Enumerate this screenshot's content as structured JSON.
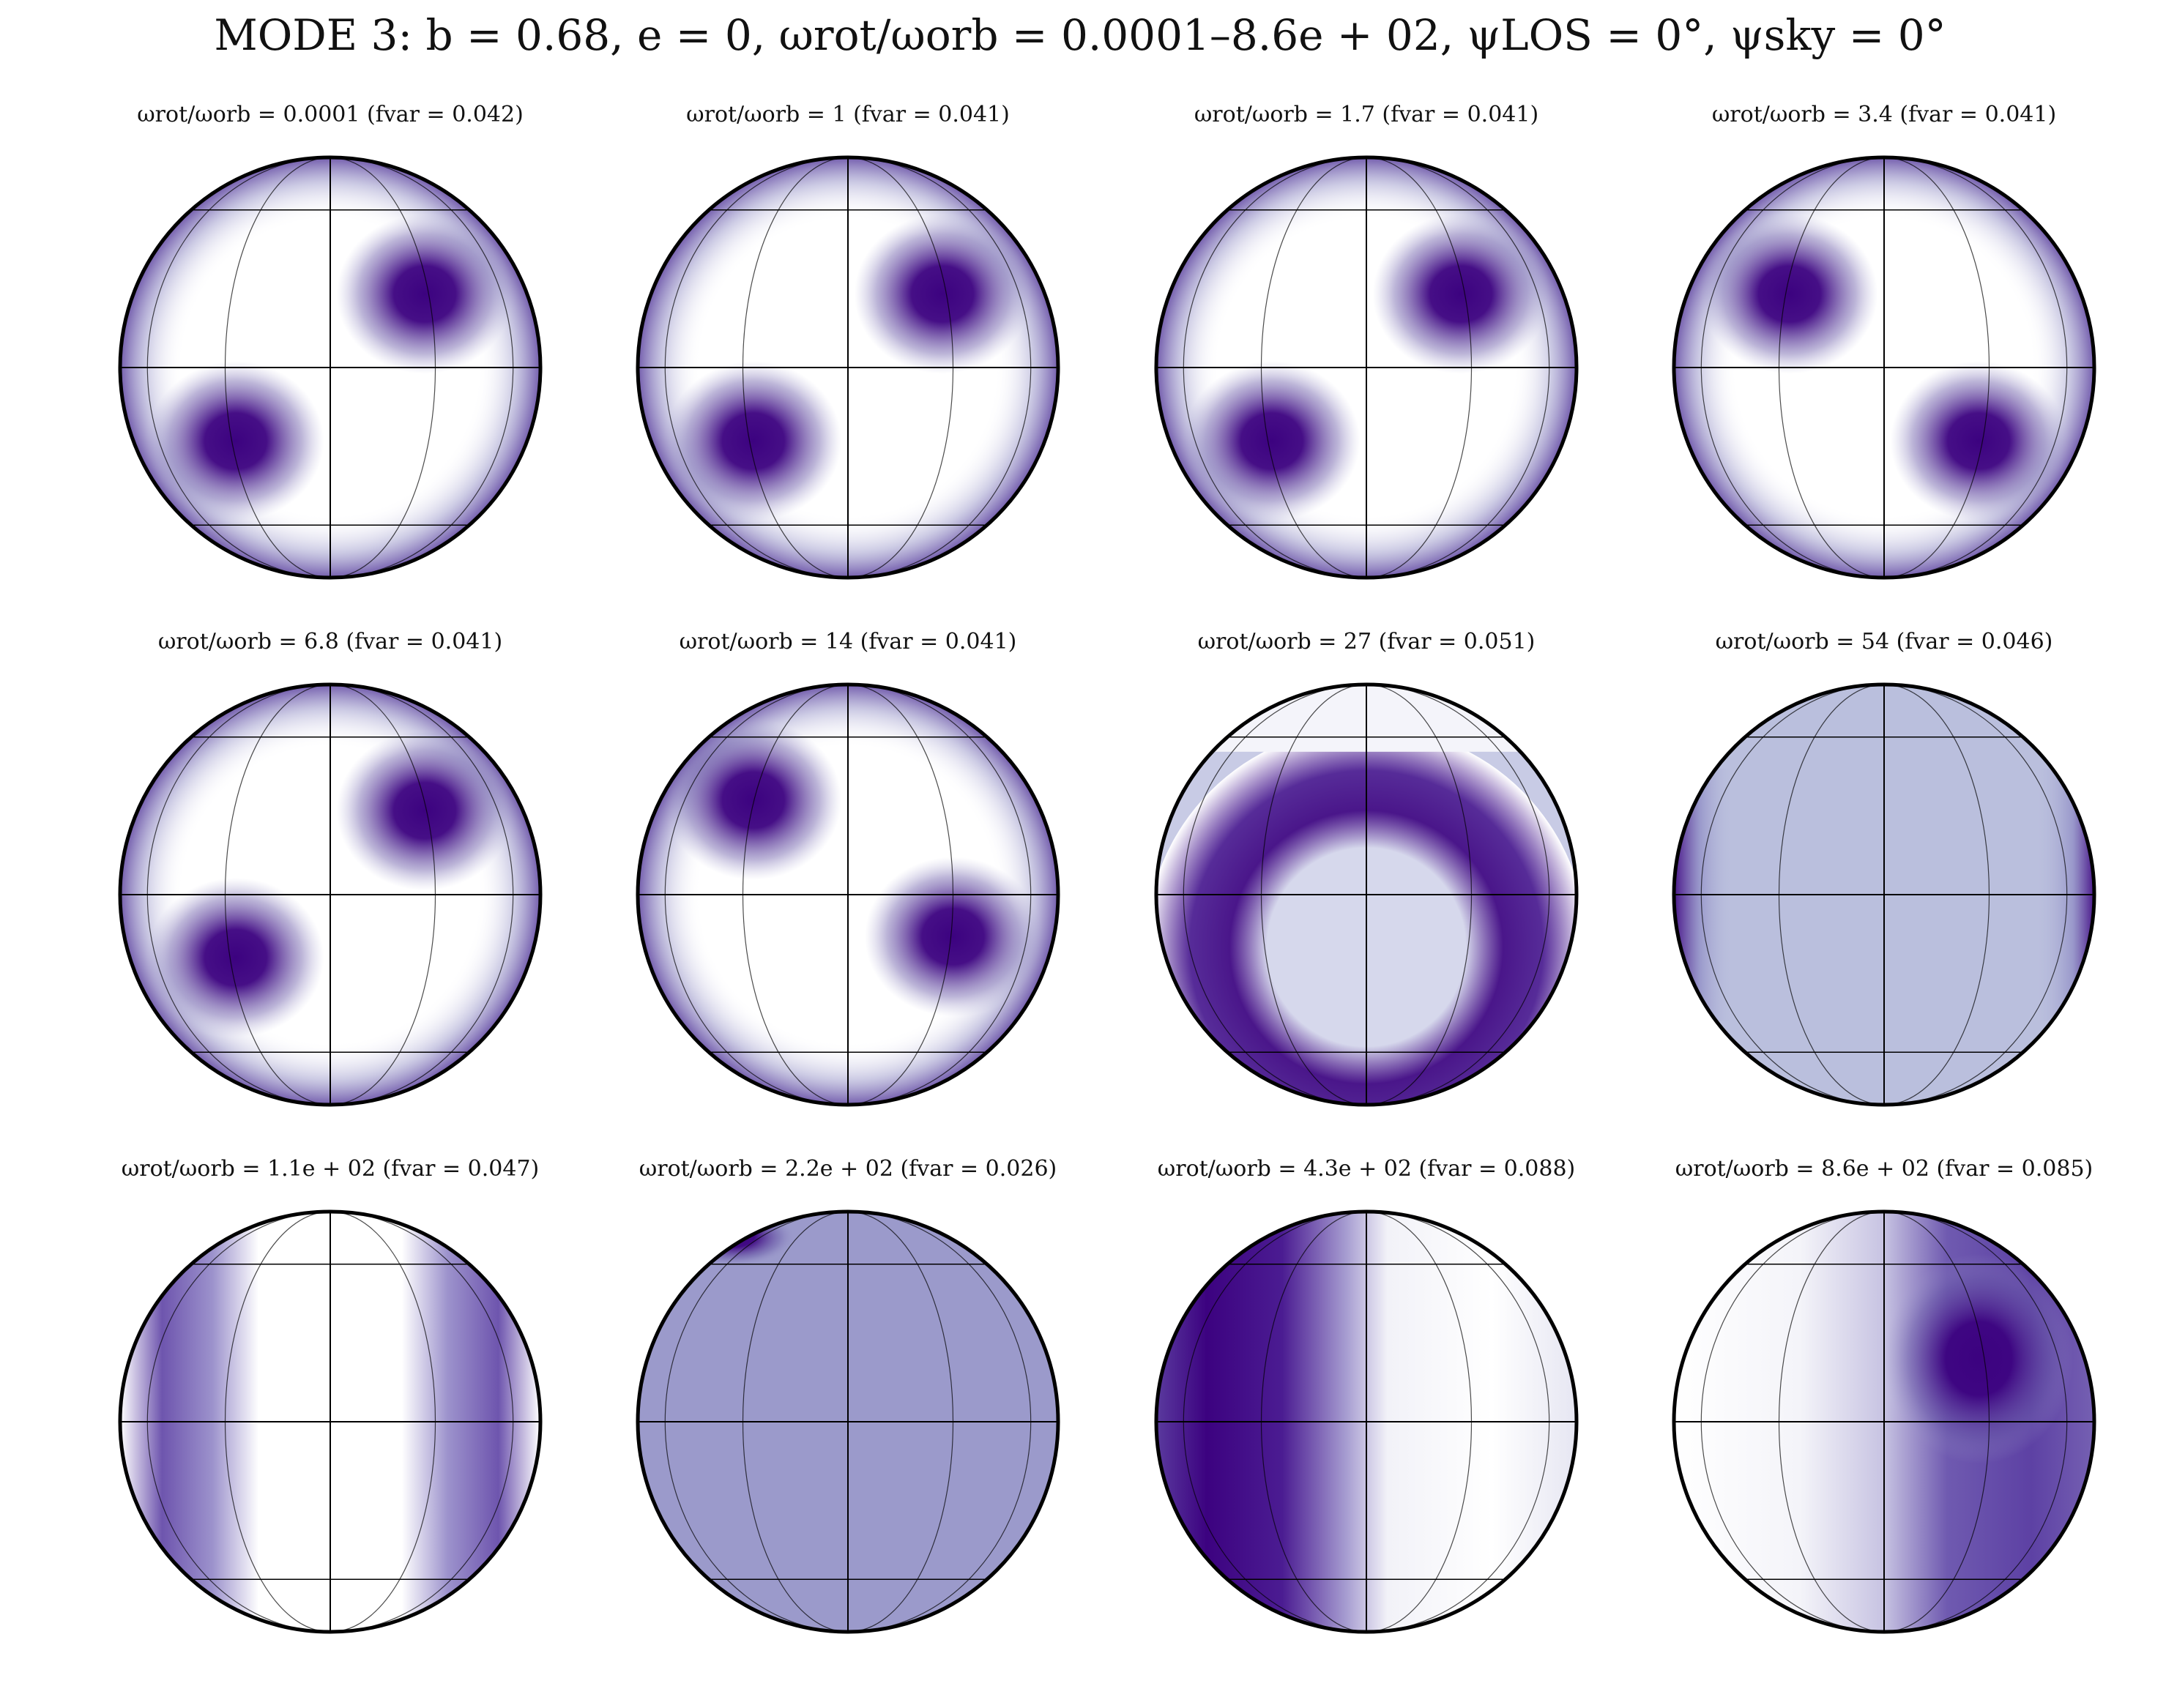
{
  "figure_title": "MODE 3: b = 0.68, e = 0, ωrot/ωorb = 0.0001–8.6e + 02, ψLOS = 0°, ψsky = 0°",
  "colors": {
    "dark": "#3c0280",
    "light": "#ffffff",
    "uniform_a": "#babfdd",
    "uniform_b": "#9b9acb"
  },
  "panels": [
    {
      "title": "ωrot/ωorb = 0.0001 (fvar = 0.042)",
      "pattern": "quad-spots",
      "spots": [
        [
          0.45,
          0.35,
          -0.45,
          -0.35
        ],
        [
          0,
          0,
          0,
          0
        ]
      ]
    },
    {
      "title": "ωrot/ωorb = 1 (fvar = 0.041)",
      "pattern": "quad-spots",
      "spots": [
        [
          0.45,
          0.35,
          -0.45,
          -0.35
        ],
        [
          0,
          0,
          0,
          0
        ]
      ]
    },
    {
      "title": "ωrot/ωorb = 1.7 (fvar = 0.041)",
      "pattern": "quad-spots",
      "spots": [
        [
          0.45,
          0.35,
          -0.45,
          -0.35
        ],
        [
          0,
          0,
          0,
          0
        ]
      ]
    },
    {
      "title": "ωrot/ωorb = 3.4 (fvar = 0.041)",
      "pattern": "quad-spots",
      "spots": [
        [
          -0.45,
          0.35,
          0.45,
          -0.35
        ],
        [
          0,
          0,
          0,
          0
        ]
      ]
    },
    {
      "title": "ωrot/ωorb = 6.8 (fvar = 0.041)",
      "pattern": "quad-spots",
      "spots": [
        [
          0.45,
          0.4,
          -0.45,
          -0.3
        ],
        [
          0,
          0,
          0,
          0
        ]
      ]
    },
    {
      "title": "ωrot/ωorb = 14 (fvar = 0.041)",
      "pattern": "quad-spots",
      "spots": [
        [
          -0.45,
          0.45,
          0.5,
          -0.2
        ],
        [
          0,
          0,
          0,
          0
        ]
      ]
    },
    {
      "title": "ωrot/ωorb = 27 (fvar = 0.051)",
      "pattern": "arc-band"
    },
    {
      "title": "ωrot/ωorb = 54 (fvar = 0.046)",
      "pattern": "uniform-edge"
    },
    {
      "title": "ωrot/ωorb = 1.1e + 02 (fvar = 0.047)",
      "pattern": "side-bands"
    },
    {
      "title": "ωrot/ωorb = 2.2e + 02 (fvar = 0.026)",
      "pattern": "uniform-corner"
    },
    {
      "title": "ωrot/ωorb = 4.3e + 02 (fvar = 0.088)",
      "pattern": "left-band"
    },
    {
      "title": "ωrot/ωorb = 8.6e + 02 (fvar = 0.085)",
      "pattern": "right-spot"
    }
  ]
}
